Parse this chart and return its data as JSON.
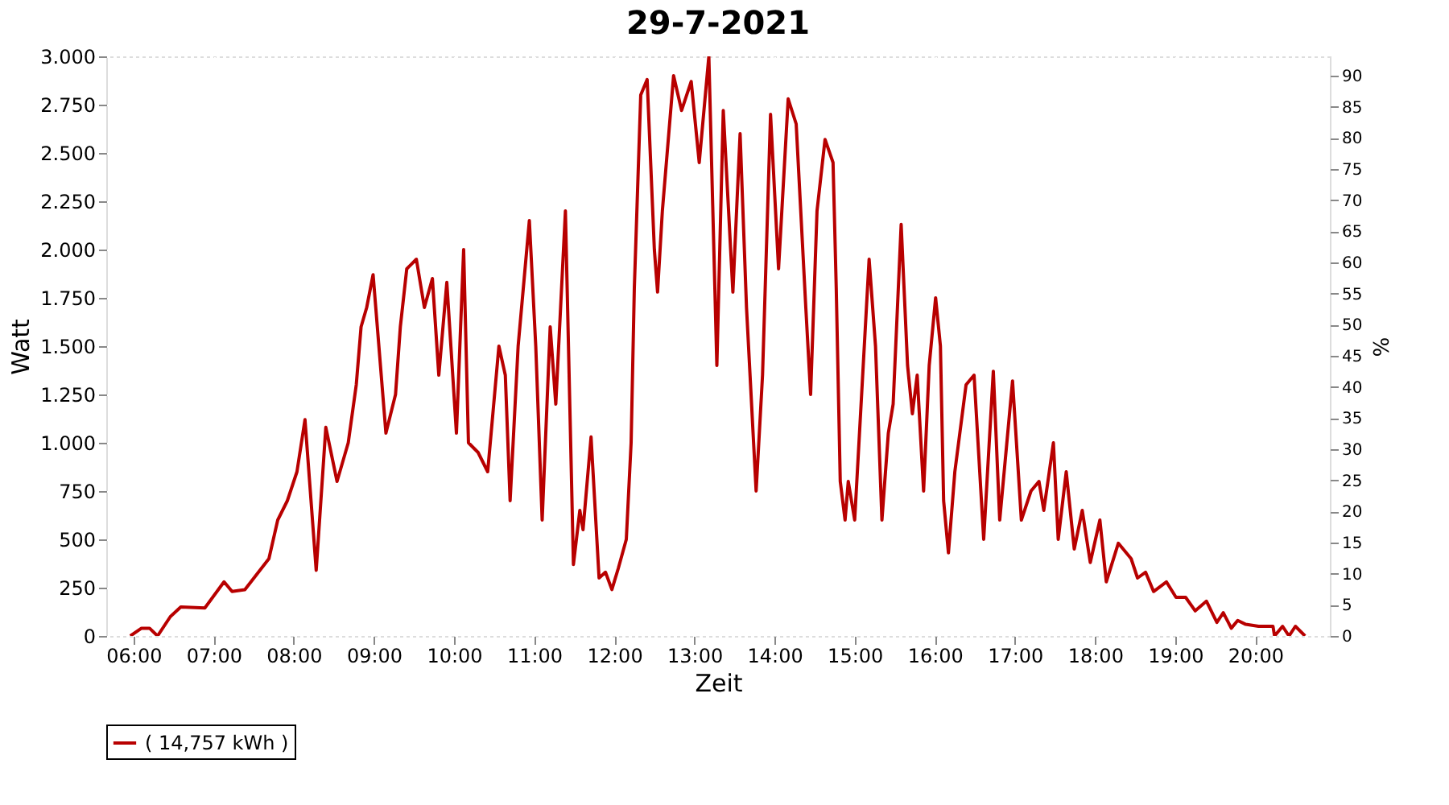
{
  "chart_data": {
    "type": "line",
    "title": "29-7-2021",
    "xlabel": "Zeit",
    "ylabel": "Watt",
    "y2label": "%",
    "xlim": [
      5.66,
      20.93
    ],
    "xticks": [
      {
        "value": 6,
        "label": "06:00"
      },
      {
        "value": 7,
        "label": "07:00"
      },
      {
        "value": 8,
        "label": "08:00"
      },
      {
        "value": 9,
        "label": "09:00"
      },
      {
        "value": 10,
        "label": "10:00"
      },
      {
        "value": 11,
        "label": "11:00"
      },
      {
        "value": 12,
        "label": "12:00"
      },
      {
        "value": 13,
        "label": "13:00"
      },
      {
        "value": 14,
        "label": "14:00"
      },
      {
        "value": 15,
        "label": "15:00"
      },
      {
        "value": 16,
        "label": "16:00"
      },
      {
        "value": 17,
        "label": "17:00"
      },
      {
        "value": 18,
        "label": "18:00"
      },
      {
        "value": 19,
        "label": "19:00"
      },
      {
        "value": 20,
        "label": "20:00"
      }
    ],
    "ylim": [
      0,
      3000
    ],
    "yticks": [
      0,
      250,
      500,
      750,
      {
        "value": 1000,
        "label": "1.000"
      },
      {
        "value": 1250,
        "label": "1.250"
      },
      {
        "value": 1500,
        "label": "1.500"
      },
      {
        "value": 1750,
        "label": "1.750"
      },
      {
        "value": 2000,
        "label": "2.000"
      },
      {
        "value": 2250,
        "label": "2.250"
      },
      {
        "value": 2500,
        "label": "2.500"
      },
      {
        "value": 2750,
        "label": "2.750"
      },
      {
        "value": 3000,
        "label": "3.000"
      }
    ],
    "y2lim": [
      0,
      93.1
    ],
    "y2ticks": [
      0,
      5,
      10,
      15,
      20,
      25,
      30,
      35,
      40,
      45,
      50,
      55,
      60,
      65,
      70,
      75,
      80,
      85,
      90
    ],
    "grid": true,
    "legend": "bottom",
    "marker": "none",
    "line_style": "solid",
    "series": [
      {
        "name": "( 14,757 kWh )",
        "color": "#b80000",
        "x": [
          5.96,
          6.1,
          6.2,
          6.3,
          6.46,
          6.59,
          6.89,
          7.13,
          7.23,
          7.39,
          7.69,
          7.8,
          7.92,
          8.04,
          8.14,
          8.28,
          8.4,
          8.54,
          8.68,
          8.78,
          8.84,
          8.91,
          8.99,
          9.15,
          9.27,
          9.33,
          9.41,
          9.53,
          9.63,
          9.73,
          9.81,
          9.91,
          10.03,
          10.12,
          10.18,
          10.3,
          10.42,
          10.56,
          10.64,
          10.7,
          10.8,
          10.94,
          11.02,
          11.1,
          11.2,
          11.27,
          11.39,
          11.49,
          11.57,
          11.61,
          11.71,
          11.81,
          11.89,
          11.97,
          12.05,
          12.15,
          12.21,
          12.25,
          12.33,
          12.41,
          12.5,
          12.54,
          12.6,
          12.74,
          12.84,
          12.96,
          13.06,
          13.18,
          13.28,
          13.36,
          13.48,
          13.57,
          13.65,
          13.77,
          13.85,
          13.95,
          14.05,
          14.17,
          14.27,
          14.39,
          14.45,
          14.53,
          14.63,
          14.73,
          14.77,
          14.82,
          14.88,
          14.92,
          15.0,
          15.18,
          15.26,
          15.34,
          15.42,
          15.48,
          15.58,
          15.66,
          15.72,
          15.78,
          15.86,
          15.93,
          16.01,
          16.07,
          16.11,
          16.17,
          16.25,
          16.39,
          16.49,
          16.61,
          16.73,
          16.81,
          16.97,
          17.08,
          17.2,
          17.3,
          17.36,
          17.48,
          17.54,
          17.64,
          17.74,
          17.84,
          17.94,
          18.06,
          18.14,
          18.29,
          18.45,
          18.53,
          18.63,
          18.73,
          18.89,
          19.01,
          19.13,
          19.25,
          19.39,
          19.52,
          19.6,
          19.7,
          19.78,
          19.88,
          20.04,
          20.22,
          20.24,
          20.34,
          20.42,
          20.5,
          20.62
        ],
        "values": [
          0,
          40,
          40,
          0,
          100,
          150,
          145,
          280,
          230,
          240,
          400,
          600,
          700,
          850,
          1120,
          340,
          1080,
          800,
          1000,
          1300,
          1600,
          1700,
          1870,
          1050,
          1250,
          1600,
          1900,
          1950,
          1700,
          1850,
          1350,
          1830,
          1050,
          2000,
          1000,
          950,
          850,
          1500,
          1350,
          700,
          1500,
          2150,
          1500,
          600,
          1600,
          1200,
          2200,
          370,
          650,
          550,
          1030,
          300,
          330,
          240,
          350,
          500,
          1000,
          1800,
          2800,
          2880,
          2000,
          1780,
          2200,
          2900,
          2720,
          2870,
          2450,
          3000,
          1400,
          2720,
          1780,
          2600,
          1700,
          750,
          1350,
          2700,
          1900,
          2780,
          2650,
          1700,
          1250,
          2200,
          2570,
          2450,
          1800,
          800,
          600,
          800,
          600,
          1950,
          1500,
          600,
          1050,
          1200,
          2130,
          1400,
          1150,
          1350,
          750,
          1400,
          1750,
          1500,
          700,
          430,
          850,
          1300,
          1350,
          500,
          1370,
          600,
          1320,
          600,
          750,
          800,
          650,
          1000,
          500,
          850,
          450,
          650,
          380,
          600,
          280,
          480,
          400,
          300,
          330,
          230,
          280,
          200,
          200,
          130,
          180,
          70,
          120,
          40,
          80,
          60,
          50,
          50,
          0,
          50,
          0,
          50,
          0
        ]
      }
    ]
  }
}
